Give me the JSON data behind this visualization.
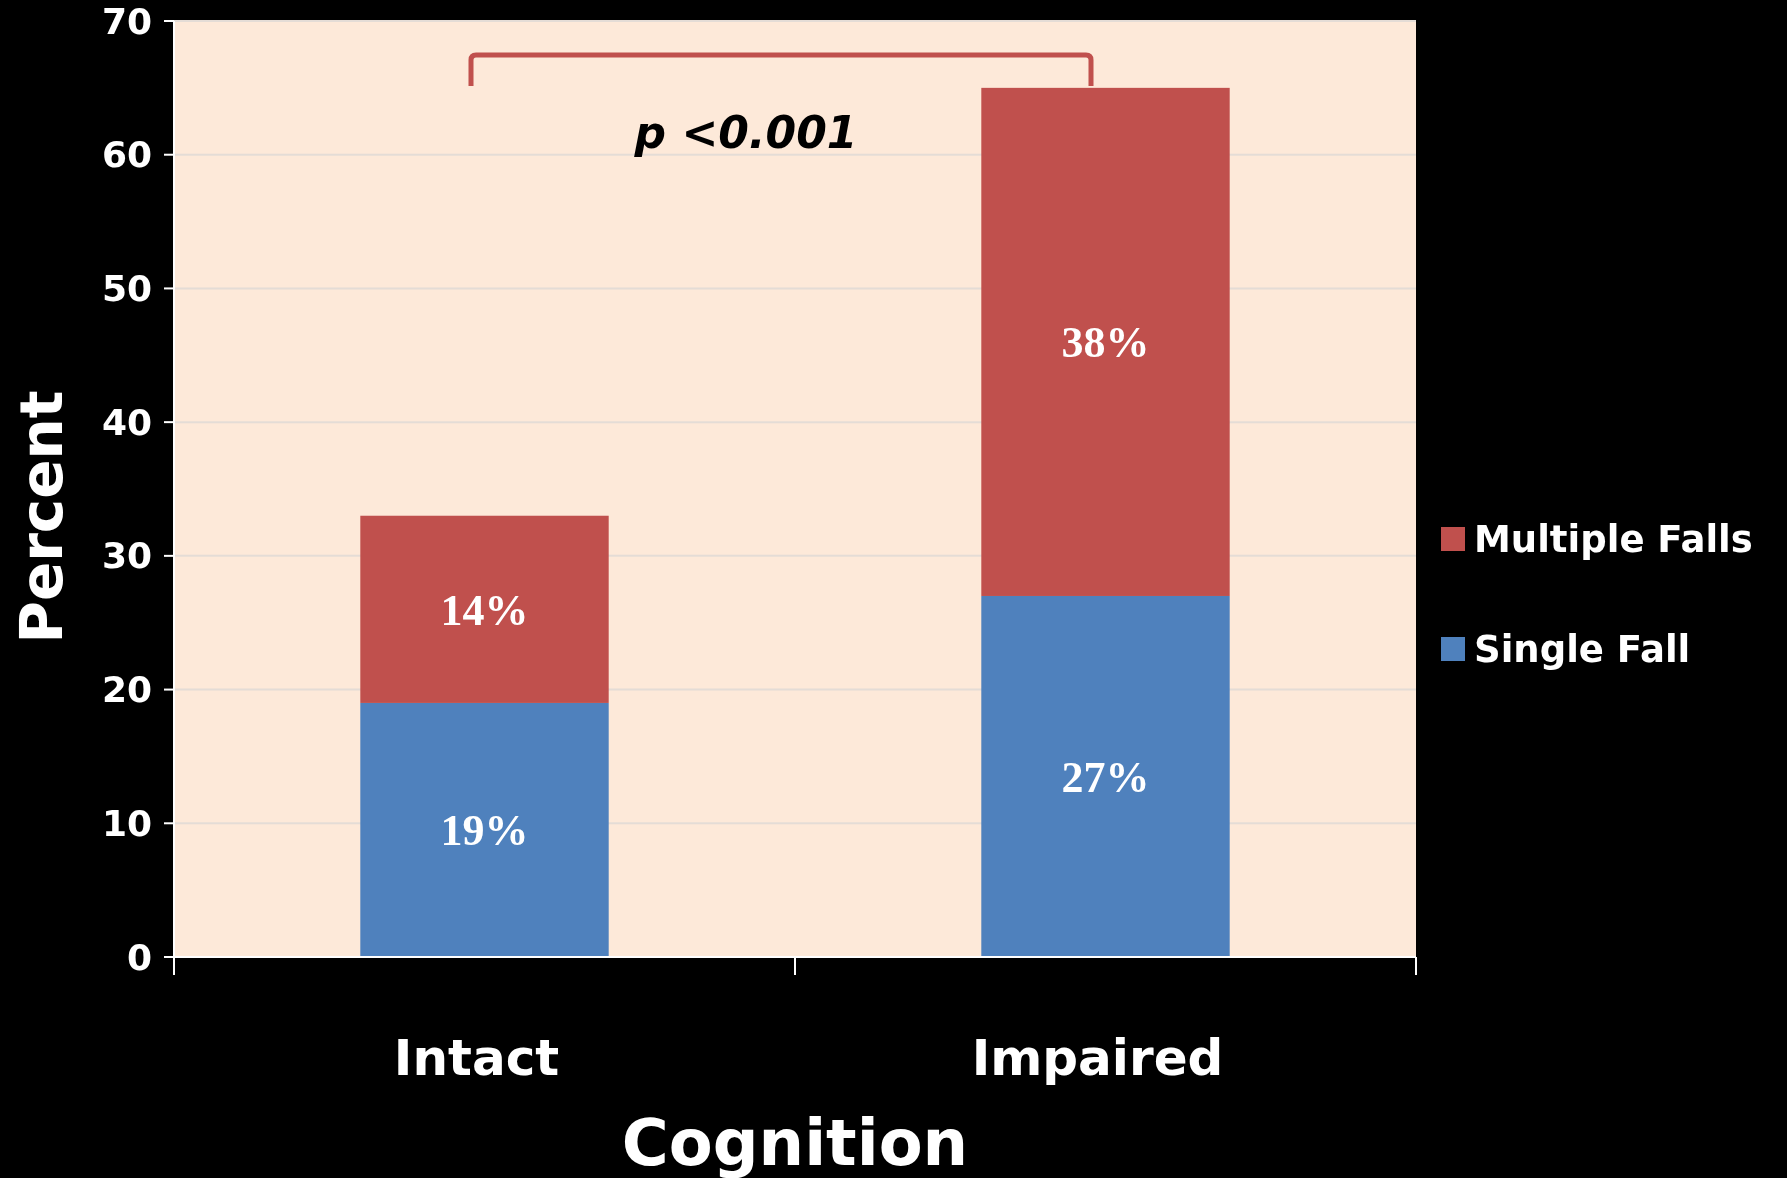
{
  "chart_data": {
    "type": "bar",
    "xlabel": "Cognition",
    "ylabel": "Percent",
    "categories": [
      "Intact",
      "Impaired"
    ],
    "stacked": true,
    "series": [
      {
        "name": "Single Fall",
        "color": "#4f81bd",
        "values": [
          19,
          27
        ],
        "value_labels": [
          "19%",
          "27%"
        ]
      },
      {
        "name": "Multiple Falls",
        "color": "#c0504d",
        "values": [
          14,
          38
        ],
        "value_labels": [
          "14%",
          "38%"
        ]
      }
    ],
    "ylim": [
      0,
      70
    ],
    "yticks": [
      0,
      10,
      20,
      30,
      40,
      50,
      60,
      70
    ],
    "grid": "y",
    "legend": "right",
    "annotations": [
      "p <0.001"
    ]
  }
}
